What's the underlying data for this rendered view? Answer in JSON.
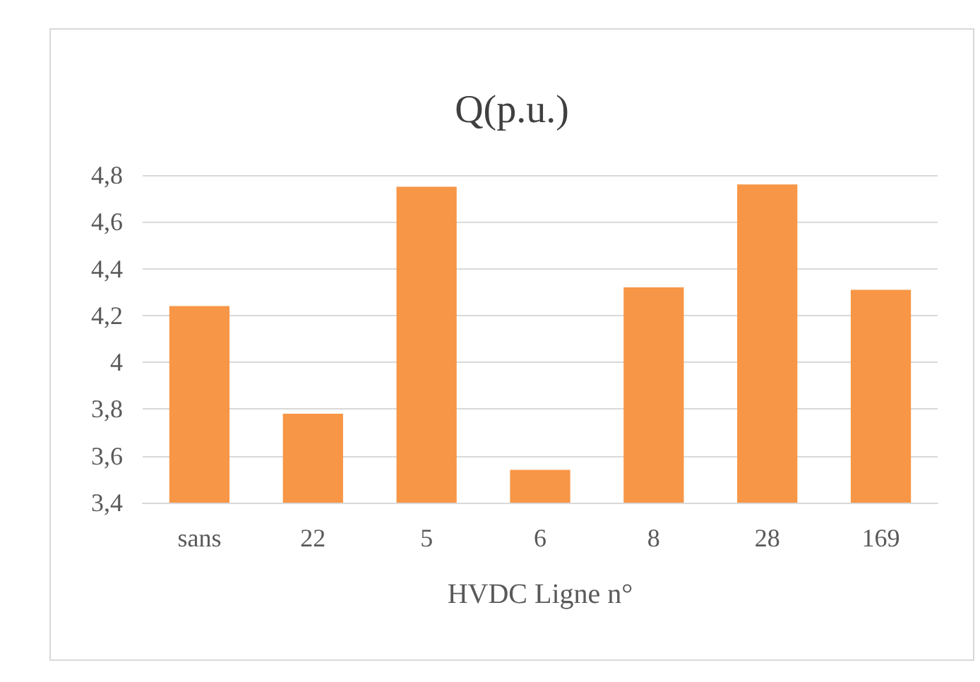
{
  "chart_data": {
    "type": "bar",
    "title": "Q(p.u.)",
    "xlabel": "HVDC Ligne n°",
    "categories": [
      "sans",
      "22",
      "5",
      "6",
      "8",
      "28",
      "169"
    ],
    "values": [
      4.24,
      3.78,
      4.75,
      3.54,
      4.32,
      4.76,
      4.31
    ],
    "color": "#f79646",
    "ylim": [
      3.4,
      4.8
    ],
    "yticks": [
      {
        "value": 3.4,
        "label": "3,4"
      },
      {
        "value": 3.6,
        "label": "3,6"
      },
      {
        "value": 3.8,
        "label": "3,8"
      },
      {
        "value": 4,
        "label": "4"
      },
      {
        "value": 4.2,
        "label": "4,2"
      },
      {
        "value": 4.4,
        "label": "4,4"
      },
      {
        "value": 4.6,
        "label": "4,6"
      },
      {
        "value": 4.8,
        "label": "4,8"
      }
    ],
    "grid": "y"
  }
}
